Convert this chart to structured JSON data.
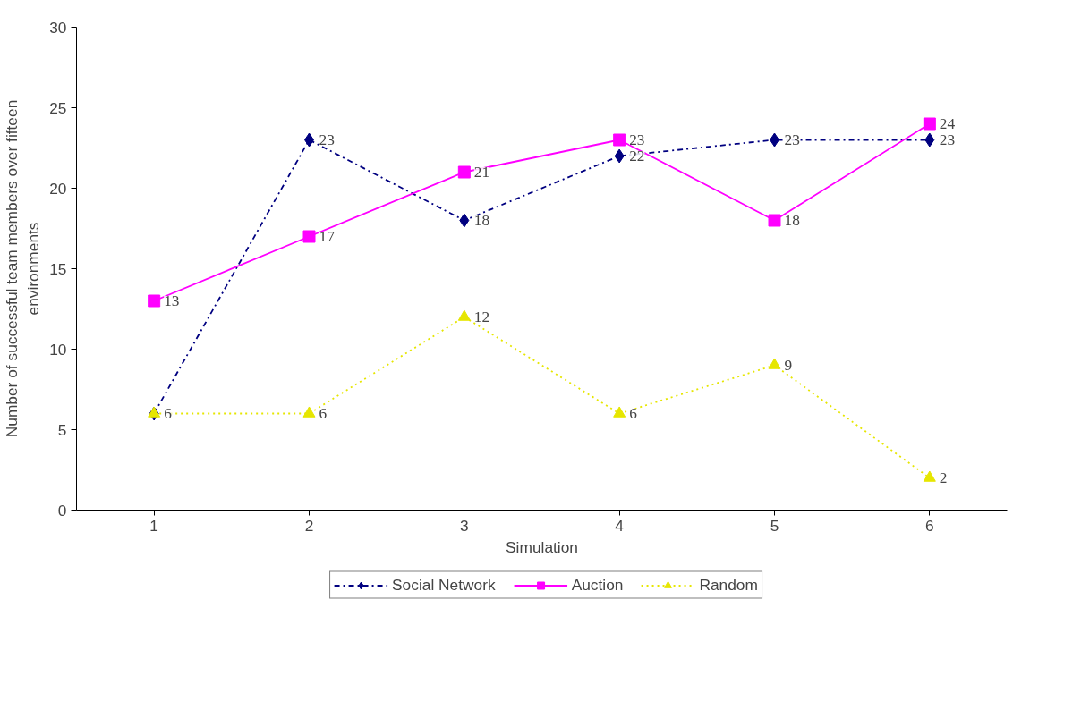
{
  "chart_data": {
    "type": "line",
    "xlabel": "Simulation",
    "ylabel": "Number of successful team members over fifteen environments",
    "categories": [
      "1",
      "2",
      "3",
      "4",
      "5",
      "6"
    ],
    "ylim": [
      0,
      30
    ],
    "yticks": [
      0,
      5,
      10,
      15,
      20,
      25,
      30
    ],
    "grid": false,
    "legend": "bottom",
    "data_labels": true,
    "series": [
      {
        "name": "Social Network",
        "color": "#000080",
        "marker": "diamond",
        "line_style": "dashed",
        "values": [
          6,
          23,
          18,
          22,
          23,
          23
        ],
        "value_labels": [
          null,
          "23",
          "18",
          "22",
          "23",
          "23"
        ]
      },
      {
        "name": "Auction",
        "color": "#ff00ff",
        "marker": "square",
        "line_style": "solid",
        "values": [
          13,
          17,
          21,
          23,
          18,
          24
        ]
      },
      {
        "name": "Random",
        "color": "#e6e600",
        "marker": "triangle",
        "line_style": "dotted",
        "values": [
          6,
          6,
          12,
          6,
          9,
          2
        ]
      }
    ]
  }
}
